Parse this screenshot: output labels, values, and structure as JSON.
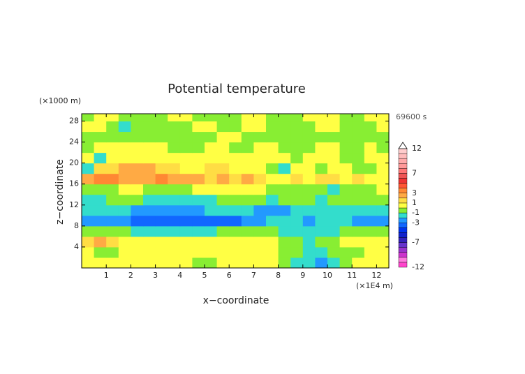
{
  "chart_data": {
    "type": "contour",
    "title": "Potential temperature",
    "time_label": "69600 s",
    "xlabel": "x−coordinate",
    "ylabel": "z−coordinate",
    "x_unit": "(×1E4 m)",
    "y_unit": "(×1000 m)",
    "xlim": [
      0,
      12.5
    ],
    "ylim": [
      0,
      29.4
    ],
    "xticks": [
      1,
      2,
      3,
      4,
      5,
      6,
      7,
      8,
      9,
      10,
      11,
      12
    ],
    "yticks": [
      4,
      8,
      12,
      16,
      20,
      24,
      28
    ],
    "x": [
      0.25,
      0.75,
      1.25,
      1.75,
      2.25,
      2.75,
      3.25,
      3.75,
      4.25,
      4.75,
      5.25,
      5.75,
      6.25,
      6.75,
      7.25,
      7.75,
      8.25,
      8.75,
      9.25,
      9.75,
      10.25,
      10.75,
      11.25,
      11.75,
      12.25
    ],
    "y": [
      1,
      3,
      5,
      7,
      9,
      11,
      13,
      15,
      17,
      19,
      21,
      23,
      25,
      27,
      29
    ],
    "z": [
      [
        0.5,
        0.5,
        0.5,
        0.5,
        0.5,
        0.5,
        0.5,
        0.5,
        0.5,
        -0.5,
        -0.5,
        0.5,
        0.5,
        0.5,
        0.5,
        0.5,
        -0.5,
        -1.5,
        -1.5,
        -2.5,
        -1.5,
        -0.5,
        0.5,
        0.5,
        0.5
      ],
      [
        0.5,
        -0.5,
        -0.5,
        0.5,
        0.5,
        0.5,
        0.5,
        0.5,
        0.5,
        0.5,
        0.5,
        0.5,
        0.5,
        0.5,
        0.5,
        0.5,
        -0.5,
        -0.5,
        -1.5,
        -1.5,
        -0.5,
        -0.5,
        -0.5,
        0.5,
        0.5
      ],
      [
        1.5,
        2.5,
        1.5,
        0.5,
        0.5,
        0.5,
        0.5,
        0.5,
        0.5,
        0.5,
        0.5,
        0.5,
        0.5,
        0.5,
        0.5,
        0.5,
        -0.5,
        -0.5,
        -1.5,
        -0.5,
        -0.5,
        0.5,
        0.5,
        0.5,
        0.5
      ],
      [
        -0.5,
        -0.5,
        -0.5,
        -0.5,
        -1.5,
        -1.5,
        -1.5,
        -1.5,
        -1.5,
        -1.5,
        -1.5,
        -0.5,
        -0.5,
        -0.5,
        -0.5,
        -0.5,
        -1.5,
        -1.5,
        -1.5,
        -1.5,
        -1.5,
        -0.5,
        -0.5,
        -0.5,
        -0.5
      ],
      [
        -2.5,
        -2.5,
        -2.5,
        -2.5,
        -3.5,
        -3.5,
        -3.5,
        -3.5,
        -3.5,
        -3.5,
        -3.5,
        -3.5,
        -3.5,
        -2.5,
        -2.5,
        -1.5,
        -1.5,
        -1.5,
        -2.5,
        -1.5,
        -1.5,
        -1.5,
        -2.5,
        -2.5,
        -2.5
      ],
      [
        -1.5,
        -1.5,
        -1.5,
        -1.5,
        -2.5,
        -2.5,
        -2.5,
        -2.5,
        -2.5,
        -2.5,
        -1.5,
        -1.5,
        -1.5,
        -1.5,
        -2.5,
        -2.5,
        -2.5,
        -1.5,
        -1.5,
        -1.5,
        -1.5,
        -1.5,
        -1.5,
        -1.5,
        -1.5
      ],
      [
        -1.5,
        -1.5,
        -0.5,
        -0.5,
        -0.5,
        -1.5,
        -1.5,
        -1.5,
        -1.5,
        -1.5,
        -1.5,
        -0.5,
        -0.5,
        -0.5,
        -0.5,
        -1.5,
        -0.5,
        -0.5,
        -0.5,
        -1.5,
        -0.5,
        -0.5,
        -0.5,
        -0.5,
        -0.5
      ],
      [
        -0.5,
        -0.5,
        -0.5,
        0.5,
        0.5,
        -0.5,
        -0.5,
        -0.5,
        -0.5,
        0.5,
        0.5,
        0.5,
        0.5,
        0.5,
        0.5,
        -0.5,
        -0.5,
        -0.5,
        -0.5,
        -0.5,
        -1.5,
        -0.5,
        -0.5,
        -0.5,
        0.5
      ],
      [
        2.5,
        3.5,
        3.5,
        2.5,
        2.5,
        2.5,
        3.5,
        2.5,
        2.5,
        2.5,
        1.5,
        2.5,
        1.5,
        2.5,
        1.5,
        0.5,
        0.5,
        1.5,
        0.5,
        1.5,
        1.5,
        0.5,
        1.5,
        0.5,
        0.5
      ],
      [
        -1.5,
        1.5,
        1.5,
        2.5,
        2.5,
        2.5,
        1.5,
        1.5,
        0.5,
        0.5,
        1.5,
        1.5,
        0.5,
        0.5,
        0.5,
        -0.5,
        -1.5,
        0.5,
        0.5,
        -0.5,
        0.5,
        0.5,
        -0.5,
        -0.5,
        0.5
      ],
      [
        0.5,
        -1.5,
        0.5,
        0.5,
        0.5,
        0.5,
        0.5,
        0.5,
        0.5,
        0.5,
        0.5,
        0.5,
        0.5,
        0.5,
        0.5,
        0.5,
        0.5,
        -0.5,
        0.5,
        0.5,
        0.5,
        -0.5,
        -0.5,
        0.5,
        0.5
      ],
      [
        -0.5,
        0.5,
        0.5,
        0.5,
        0.5,
        0.5,
        0.5,
        -0.5,
        -0.5,
        -0.5,
        0.5,
        0.5,
        -0.5,
        -0.5,
        0.5,
        0.5,
        -0.5,
        -0.5,
        -0.5,
        0.5,
        0.5,
        -0.5,
        -0.5,
        0.5,
        -0.5
      ],
      [
        -0.5,
        -0.5,
        -0.5,
        -0.5,
        -0.5,
        -0.5,
        -0.5,
        -0.5,
        -0.5,
        -0.5,
        -0.5,
        0.5,
        0.5,
        -0.5,
        -0.5,
        -0.5,
        -0.5,
        -0.5,
        -0.5,
        -0.5,
        -0.5,
        -0.5,
        -0.5,
        -0.5,
        -0.5
      ],
      [
        0.5,
        0.5,
        -0.5,
        -1.5,
        -0.5,
        -0.5,
        -0.5,
        -0.5,
        -0.5,
        0.5,
        0.5,
        -0.5,
        -0.5,
        0.5,
        0.5,
        -0.5,
        -0.5,
        -0.5,
        -0.5,
        0.5,
        0.5,
        -0.5,
        -0.5,
        -0.5,
        0.5
      ],
      [
        -0.5,
        0.5,
        0.5,
        -0.5,
        -0.5,
        -0.5,
        -0.5,
        0.5,
        0.5,
        -0.5,
        -0.5,
        -0.5,
        -0.5,
        0.5,
        0.5,
        -0.5,
        -0.5,
        -0.5,
        0.5,
        0.5,
        0.5,
        -0.5,
        -0.5,
        0.5,
        0.5
      ]
    ],
    "levels": [
      -12,
      -11,
      -10,
      -9,
      -8,
      -7,
      -6,
      -5,
      -4,
      -3,
      -2,
      -1,
      0,
      1,
      2,
      3,
      4,
      5,
      6,
      7,
      8,
      9,
      10,
      11,
      12
    ],
    "colors": [
      "#ff44cc",
      "#ff77dd",
      "#cc33cc",
      "#9933cc",
      "#6633cc",
      "#3322bb",
      "#1122cc",
      "#0033ee",
      "#1166ff",
      "#2299ff",
      "#33ddcc",
      "#88ee33",
      "#ffff44",
      "#ffdd44",
      "#ffaa44",
      "#ff8833",
      "#ff5533",
      "#ee3333",
      "#ee5555",
      "#ff7777",
      "#ff9999",
      "#ffaaaa",
      "#ffbbbb",
      "#ffcccc"
    ],
    "colorbar_ticks": [
      -12,
      -7,
      -3,
      -1,
      1,
      3,
      7,
      12
    ]
  }
}
